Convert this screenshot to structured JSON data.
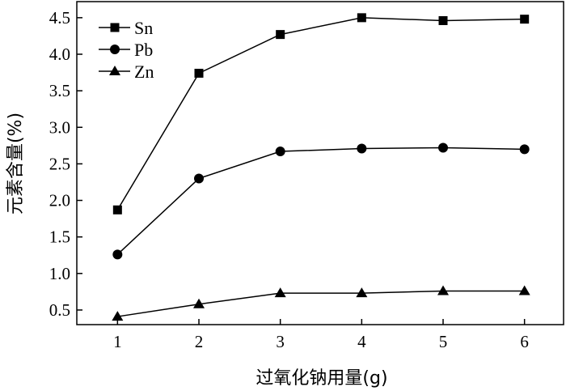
{
  "chart_data": {
    "type": "line",
    "title": "",
    "xlabel": "过氧化钠用量(g)",
    "ylabel": "元素含量(%)",
    "x": [
      1,
      2,
      3,
      4,
      5,
      6
    ],
    "xticks": [
      "1",
      "2",
      "3",
      "4",
      "5",
      "6"
    ],
    "yticks": [
      "0.5",
      "1.0",
      "1.5",
      "2.0",
      "2.5",
      "3.0",
      "3.5",
      "4.0",
      "4.5"
    ],
    "xlim": [
      0.5,
      6.48
    ],
    "ylim": [
      0.3,
      4.72
    ],
    "grid": false,
    "legend_position": "top-left",
    "series": [
      {
        "name": "Sn",
        "marker": "square",
        "values": [
          1.87,
          3.74,
          4.27,
          4.5,
          4.46,
          4.48
        ]
      },
      {
        "name": "Pb",
        "marker": "circle",
        "values": [
          1.26,
          2.3,
          2.67,
          2.71,
          2.72,
          2.7
        ]
      },
      {
        "name": "Zn",
        "marker": "triangle",
        "values": [
          0.41,
          0.58,
          0.73,
          0.73,
          0.76,
          0.76
        ]
      }
    ],
    "colors": {
      "line": "#000000",
      "marker": "#000000"
    }
  }
}
